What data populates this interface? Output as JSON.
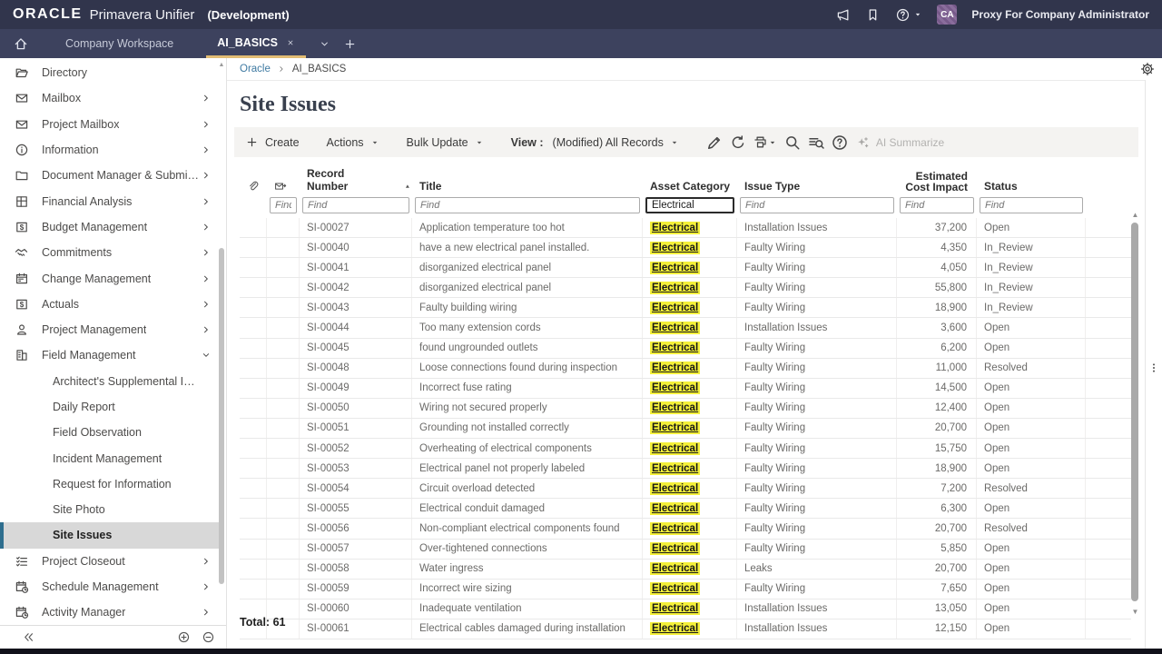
{
  "colors": {
    "topbar": "#31354c",
    "tabbar": "#3d425e",
    "accent_gold": "#e2bc74",
    "highlight_yellow": "#f4f03a",
    "selected_border": "#2e6e8e",
    "link_blue": "#3f7aa2"
  },
  "topbar": {
    "logo": "ORACLE",
    "product": "Primavera Unifier",
    "environment": "(Development)",
    "avatar_initials": "CA",
    "user": "Proxy For Company Administrator"
  },
  "tabbar": {
    "workspace_tab": "Company Workspace",
    "active_tab": "AI_BASICS"
  },
  "sidebar": {
    "items": [
      {
        "label": "Directory",
        "icon": "folder-open-icon",
        "arrow": ""
      },
      {
        "label": "Mailbox",
        "icon": "mail-icon",
        "arrow": "chevron-right-icon"
      },
      {
        "label": "Project Mailbox",
        "icon": "mail-icon",
        "arrow": "chevron-right-icon"
      },
      {
        "label": "Information",
        "icon": "info-icon",
        "arrow": "chevron-right-icon"
      },
      {
        "label": "Document Manager & Submittals",
        "icon": "folder-icon",
        "arrow": "chevron-right-icon"
      },
      {
        "label": "Financial Analysis",
        "icon": "grid-icon",
        "arrow": "chevron-right-icon"
      },
      {
        "label": "Budget Management",
        "icon": "dollar-icon",
        "arrow": "chevron-right-icon"
      },
      {
        "label": "Commitments",
        "icon": "handshake-icon",
        "arrow": "chevron-right-icon"
      },
      {
        "label": "Change Management",
        "icon": "calendar-icon",
        "arrow": "chevron-right-icon"
      },
      {
        "label": "Actuals",
        "icon": "dollar-icon",
        "arrow": "chevron-right-icon"
      },
      {
        "label": "Project Management",
        "icon": "person-icon",
        "arrow": "chevron-right-icon"
      },
      {
        "label": "Field Management",
        "icon": "building-icon",
        "arrow": "chevron-down-icon"
      },
      {
        "label": "Architect's Supplemental Instruc…",
        "child": true
      },
      {
        "label": "Daily Report",
        "child": true
      },
      {
        "label": "Field Observation",
        "child": true
      },
      {
        "label": "Incident Management",
        "child": true
      },
      {
        "label": "Request for Information",
        "child": true
      },
      {
        "label": "Site Photo",
        "child": true
      },
      {
        "label": "Site Issues",
        "child": true,
        "selected": true
      },
      {
        "label": "Project Closeout",
        "icon": "checklist-icon",
        "arrow": "chevron-right-icon"
      },
      {
        "label": "Schedule Management",
        "icon": "calendar-clock-icon",
        "arrow": "chevron-right-icon"
      },
      {
        "label": "Activity Manager",
        "icon": "calendar-clock-icon",
        "arrow": "chevron-right-icon"
      }
    ]
  },
  "breadcrumb": {
    "root": "Oracle",
    "current": "AI_BASICS"
  },
  "page_title": "Site Issues",
  "toolbar": {
    "create": "Create",
    "actions": "Actions",
    "bulk_update": "Bulk Update",
    "view_label": "View :",
    "view_value": "(Modified) All Records",
    "ai_summarize": "AI Summarize"
  },
  "table": {
    "columns": {
      "record": "Record Number",
      "title": "Title",
      "asset": "Asset Category",
      "issue": "Issue Type",
      "cost_line1": "Estimated",
      "cost_line2": "Cost Impact",
      "status": "Status"
    },
    "filters": {
      "find_placeholder": "Find",
      "asset_value": "Electrical"
    },
    "rows": [
      {
        "record": "SI-00027",
        "title": "Application temperature too hot",
        "asset": "Electrical",
        "issue": "Installation Issues",
        "cost": "37,200",
        "status": "Open"
      },
      {
        "record": "SI-00040",
        "title": "have a new electrical panel installed.",
        "asset": "Electrical",
        "issue": "Faulty Wiring",
        "cost": "4,350",
        "status": "In_Review"
      },
      {
        "record": "SI-00041",
        "title": "disorganized electrical panel",
        "asset": "Electrical",
        "issue": "Faulty Wiring",
        "cost": "4,050",
        "status": "In_Review"
      },
      {
        "record": "SI-00042",
        "title": "disorganized electrical panel",
        "asset": "Electrical",
        "issue": "Faulty Wiring",
        "cost": "55,800",
        "status": "In_Review"
      },
      {
        "record": "SI-00043",
        "title": "Faulty building wiring",
        "asset": "Electrical",
        "issue": "Faulty Wiring",
        "cost": "18,900",
        "status": "In_Review"
      },
      {
        "record": "SI-00044",
        "title": "Too many extension cords",
        "asset": "Electrical",
        "issue": "Installation Issues",
        "cost": "3,600",
        "status": "Open"
      },
      {
        "record": "SI-00045",
        "title": "found ungrounded outlets",
        "asset": "Electrical",
        "issue": "Faulty Wiring",
        "cost": "6,200",
        "status": "Open"
      },
      {
        "record": "SI-00048",
        "title": "Loose connections found during inspection",
        "asset": "Electrical",
        "issue": "Faulty Wiring",
        "cost": "11,000",
        "status": "Resolved"
      },
      {
        "record": "SI-00049",
        "title": "Incorrect fuse rating",
        "asset": "Electrical",
        "issue": "Faulty Wiring",
        "cost": "14,500",
        "status": "Open"
      },
      {
        "record": "SI-00050",
        "title": "Wiring not secured properly",
        "asset": "Electrical",
        "issue": "Faulty Wiring",
        "cost": "12,400",
        "status": "Open"
      },
      {
        "record": "SI-00051",
        "title": "Grounding not installed correctly",
        "asset": "Electrical",
        "issue": "Faulty Wiring",
        "cost": "20,700",
        "status": "Open"
      },
      {
        "record": "SI-00052",
        "title": "Overheating of electrical components",
        "asset": "Electrical",
        "issue": "Faulty Wiring",
        "cost": "15,750",
        "status": "Open"
      },
      {
        "record": "SI-00053",
        "title": "Electrical panel not properly labeled",
        "asset": "Electrical",
        "issue": "Faulty Wiring",
        "cost": "18,900",
        "status": "Open"
      },
      {
        "record": "SI-00054",
        "title": "Circuit overload detected",
        "asset": "Electrical",
        "issue": "Faulty Wiring",
        "cost": "7,200",
        "status": "Resolved"
      },
      {
        "record": "SI-00055",
        "title": "Electrical conduit damaged",
        "asset": "Electrical",
        "issue": "Faulty Wiring",
        "cost": "6,300",
        "status": "Open"
      },
      {
        "record": "SI-00056",
        "title": "Non-compliant electrical components found",
        "asset": "Electrical",
        "issue": "Faulty Wiring",
        "cost": "20,700",
        "status": "Resolved"
      },
      {
        "record": "SI-00057",
        "title": "Over-tightened connections",
        "asset": "Electrical",
        "issue": "Faulty Wiring",
        "cost": "5,850",
        "status": "Open"
      },
      {
        "record": "SI-00058",
        "title": "Water ingress",
        "asset": "Electrical",
        "issue": "Leaks",
        "cost": "20,700",
        "status": "Open"
      },
      {
        "record": "SI-00059",
        "title": "Incorrect wire sizing",
        "asset": "Electrical",
        "issue": "Faulty Wiring",
        "cost": "7,650",
        "status": "Open"
      },
      {
        "record": "SI-00060",
        "title": "Inadequate ventilation",
        "asset": "Electrical",
        "issue": "Installation Issues",
        "cost": "13,050",
        "status": "Open"
      },
      {
        "record": "SI-00061",
        "title": "Electrical cables damaged during installation",
        "asset": "Electrical",
        "issue": "Installation Issues",
        "cost": "12,150",
        "status": "Open"
      }
    ],
    "total": "Total: 61"
  }
}
